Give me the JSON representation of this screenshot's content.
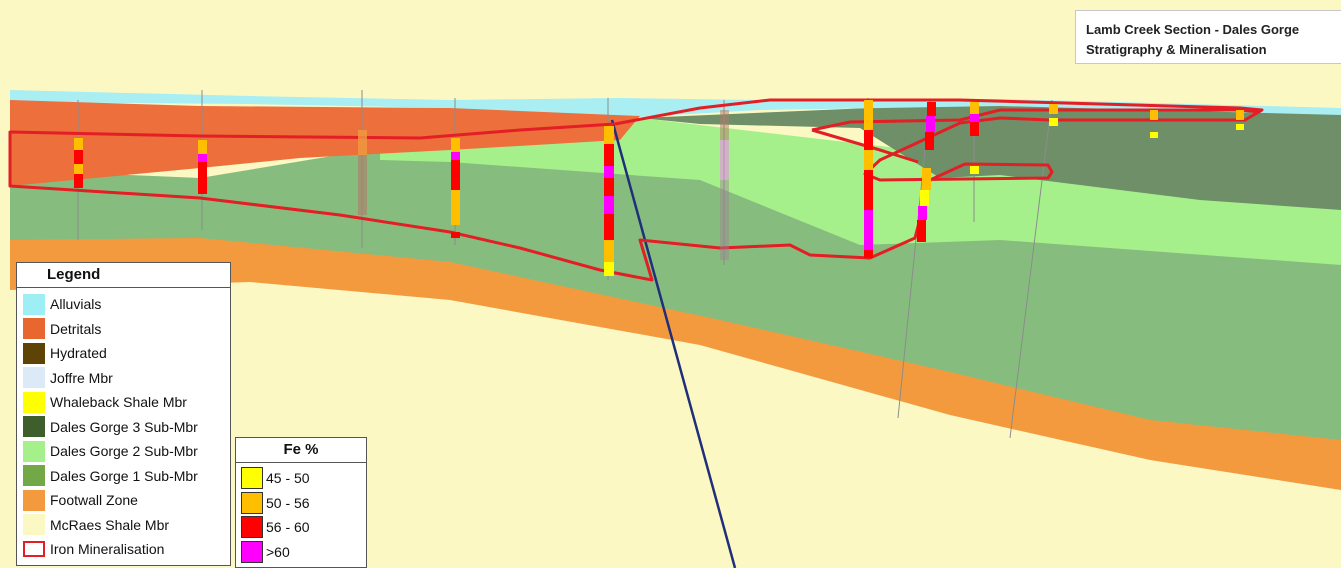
{
  "title": {
    "line1": "Lamb Creek Section -  Dales Gorge",
    "line2": "Stratigraphy & Mineralisation"
  },
  "legend": {
    "heading": "Legend",
    "items": [
      {
        "label": "Alluvials",
        "color": "#9EEEF5",
        "outline": false
      },
      {
        "label": "Detritals",
        "color": "#E8672F",
        "outline": false
      },
      {
        "label": "Hydrated",
        "color": "#5E4307",
        "outline": false
      },
      {
        "label": "Joffre Mbr",
        "color": "#DCEAF8",
        "outline": false
      },
      {
        "label": "Whaleback Shale Mbr",
        "color": "#FFFF00",
        "outline": false
      },
      {
        "label": "Dales Gorge 3 Sub-Mbr",
        "color": "#3E5E2C",
        "outline": false
      },
      {
        "label": "Dales Gorge 2 Sub-Mbr",
        "color": "#A6F08C",
        "outline": false
      },
      {
        "label": "Dales Gorge 1 Sub-Mbr",
        "color": "#73A848",
        "outline": false
      },
      {
        "label": "Footwall Zone",
        "color": "#F39A3E",
        "outline": false
      },
      {
        "label": "McRaes Shale Mbr",
        "color": "#FCF8C4",
        "outline": false
      },
      {
        "label": "Iron Mineralisation",
        "color": "#E31E24",
        "outline": true
      }
    ]
  },
  "fe_legend": {
    "heading": "Fe %",
    "items": [
      {
        "label": "45 - 50",
        "color": "#FFFF00"
      },
      {
        "label": "50 - 56",
        "color": "#FFBF00"
      },
      {
        "label": "56 - 60",
        "color": "#FF0000"
      },
      {
        "label": ">60",
        "color": "#FF00FF"
      }
    ]
  },
  "colors": {
    "mineral_outline": "#E31E24",
    "drillhole_trace": "#8C8C8C",
    "inclined_hole": "#1F2F7A",
    "dg2": "#A6F08C",
    "dg1": "#86BD7E",
    "dg3": "#6F8F68",
    "footwall": "#F39A3E",
    "detritals": "#EC6F3C",
    "alluvials": "#A8EEF3",
    "mcraes": "#FCF8C4"
  }
}
